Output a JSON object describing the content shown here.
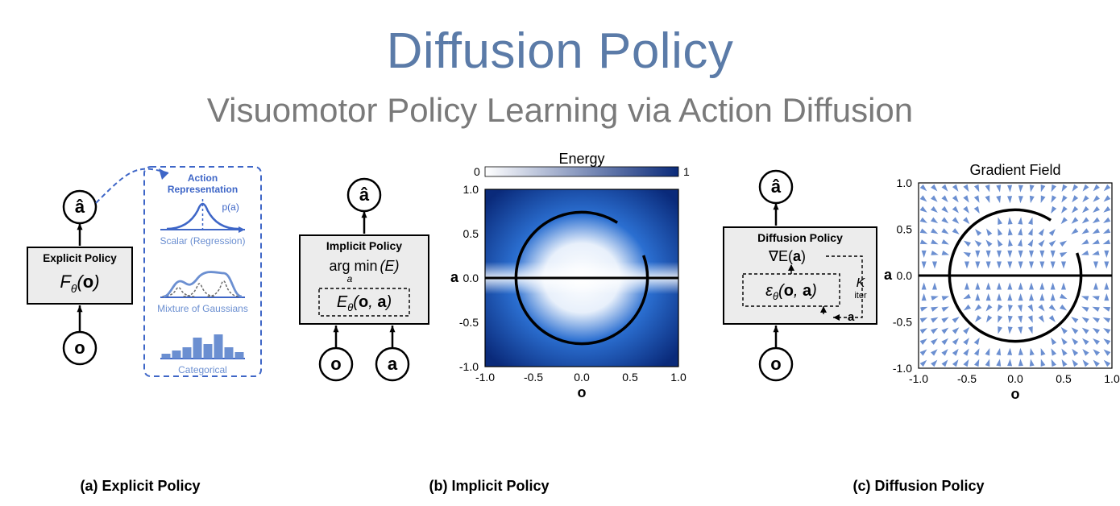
{
  "colors": {
    "title": "#5b7ba8",
    "subtitle": "#7a7a7a",
    "box_fill": "#ececec",
    "box_stroke": "#000000",
    "dashed": "#3e66c7",
    "blue_mid": "#6b8fd1",
    "blue_dark": "#0d3c8c",
    "blue_field": "#183d9b",
    "blue_energy_dark": "#0a2a7a",
    "blue_energy_light": "#2b6fd1",
    "white": "#ffffff",
    "black": "#000000",
    "gray_line": "#888888",
    "gray_dash": "#6b6b6b"
  },
  "title": "Diffusion Policy",
  "subtitle": "Visuomotor Policy Learning via Action Diffusion",
  "panel_a": {
    "caption": "(a) Explicit Policy",
    "box_title": "Explicit Policy",
    "formula": "F_θ(o)",
    "a_hat": "â",
    "o": "o",
    "rep_title": "Action Representation",
    "rep1": "Scalar (Regression)",
    "rep2": "Mixture of Gaussians",
    "rep3": "Categorical",
    "p_a": "p(a)"
  },
  "panel_b": {
    "caption": "(b) Implicit Policy",
    "box_title": "Implicit Policy",
    "argmin_top": "arg min",
    "argmin_sub": "a",
    "argmin_arg": "(E)",
    "energy_formula": "E_θ(o, a)",
    "a_hat": "â",
    "o": "o",
    "a": "a",
    "plot_title": "Energy",
    "axis_a": "a",
    "axis_o": "o",
    "cbar_min": "0",
    "cbar_max": "1",
    "x_ticks": [
      "-1.0",
      "-0.5",
      "0.0",
      "0.5",
      "1.0"
    ],
    "y_ticks": [
      "-1.0",
      "-0.5",
      "0.0",
      "0.5",
      "1.0"
    ]
  },
  "panel_c": {
    "caption": "(c) Diffusion Policy",
    "box_title": "Diffusion Policy",
    "grad": "∇E(a)",
    "eps": "ε_θ(o, a)",
    "k": "K",
    "iter": "iter",
    "a_hat": "â",
    "o": "o",
    "a": "a",
    "plot_title": "Gradient Field",
    "axis_a": "a",
    "axis_o": "o",
    "x_ticks": [
      "-1.0",
      "-0.5",
      "0.0",
      "0.5",
      "1.0"
    ],
    "y_ticks": [
      "-1.0",
      "-0.5",
      "0.0",
      "0.5",
      "1.0"
    ]
  }
}
